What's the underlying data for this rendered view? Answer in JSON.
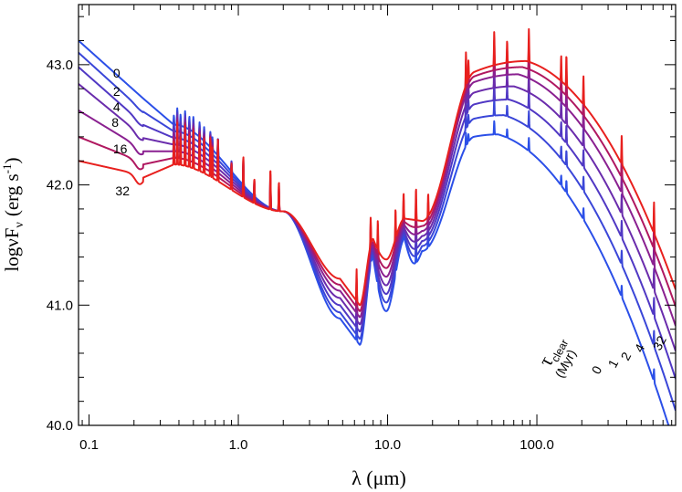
{
  "chart_data": {
    "type": "line",
    "xscale": "log",
    "xlim": [
      0.085,
      850
    ],
    "ylim": [
      40.0,
      43.5
    ],
    "xlabel": "λ (μm)",
    "ylabel_main": "logνF",
    "ylabel_sub": "ν",
    "ylabel_unit": "(erg s",
    "ylabel_unit_sup": "-1",
    "ylabel_unit_close": ")",
    "x_ticks": [
      {
        "value": 0.1,
        "label": "0.1"
      },
      {
        "value": 1.0,
        "label": "1.0"
      },
      {
        "value": 10.0,
        "label": "10.0"
      },
      {
        "value": 100.0,
        "label": "100.0"
      }
    ],
    "y_ticks": [
      {
        "value": 40.0,
        "label": "40.0"
      },
      {
        "value": 41.0,
        "label": "41.0"
      },
      {
        "value": 42.0,
        "label": "42.0"
      },
      {
        "value": 43.0,
        "label": "43.0"
      }
    ],
    "left_curve_labels": [
      {
        "label": "0",
        "x": 0.135,
        "y": 42.93,
        "series": 0
      },
      {
        "label": "2",
        "x": 0.135,
        "y": 42.78,
        "series": 1
      },
      {
        "label": "4",
        "x": 0.135,
        "y": 42.65,
        "series": 2
      },
      {
        "label": "8",
        "x": 0.132,
        "y": 42.52,
        "series": 3
      },
      {
        "label": "16",
        "x": 0.135,
        "y": 42.3,
        "series": 4
      },
      {
        "label": "32",
        "x": 0.14,
        "y": 41.95,
        "series": 6
      }
    ],
    "right_legend": {
      "title": "τ",
      "title_sub": "clear",
      "unit": "(Myr)",
      "values": [
        "32",
        "4",
        "2",
        "1",
        "0"
      ]
    },
    "series": [
      {
        "name": "0",
        "color": "#2b4fe8",
        "uv": 43.2,
        "nir": 41.99,
        "mir": 40.67,
        "fir": 42.42,
        "peak": 55
      },
      {
        "name": "1",
        "color": "#3a46d8",
        "uv": 43.1,
        "nir": 42.0,
        "mir": 40.72,
        "fir": 42.58,
        "peak": 60
      },
      {
        "name": "2",
        "color": "#5038c4",
        "uv": 42.98,
        "nir": 42.01,
        "mir": 40.78,
        "fir": 42.71,
        "peak": 65
      },
      {
        "name": "4",
        "color": "#6a2cac",
        "uv": 42.84,
        "nir": 42.02,
        "mir": 40.84,
        "fir": 42.82,
        "peak": 70
      },
      {
        "name": "8",
        "color": "#8a2090",
        "uv": 42.62,
        "nir": 42.03,
        "mir": 40.9,
        "fir": 42.92,
        "peak": 75
      },
      {
        "name": "16",
        "color": "#b01860",
        "uv": 42.4,
        "nir": 42.04,
        "mir": 40.95,
        "fir": 42.98,
        "peak": 80
      },
      {
        "name": "32",
        "color": "#e8201e",
        "uv": 42.2,
        "nir": 42.05,
        "mir": 41.0,
        "fir": 43.03,
        "peak": 85
      }
    ],
    "emission_lines": [
      0.37,
      0.39,
      0.41,
      0.44,
      0.47,
      0.5,
      0.55,
      0.59,
      0.65,
      0.67,
      0.73,
      0.9,
      1.08,
      1.28,
      1.64,
      1.87,
      6.2,
      7.7,
      8.6,
      11.3,
      12.8,
      15.5,
      18.7,
      33.5,
      34.8,
      51.8,
      63.2,
      88.4,
      145.5,
      157.7,
      205.2,
      370,
      609
    ]
  }
}
